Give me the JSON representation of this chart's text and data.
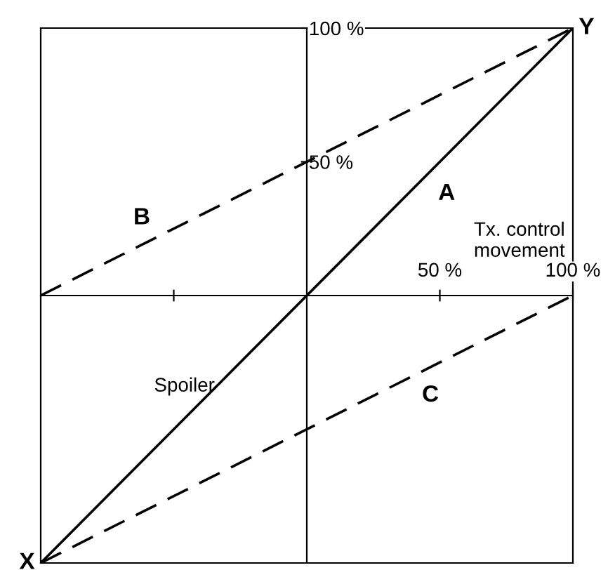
{
  "chart_data": {
    "type": "line",
    "xlabel": "Tx. control\nmovement",
    "ylabel": "Spoiler",
    "x": [
      -100,
      100
    ],
    "series": [
      {
        "name": "A",
        "color": "#000000",
        "values": [
          -100,
          100
        ],
        "line_style": "solid"
      },
      {
        "name": "B",
        "color": "#000000",
        "values": [
          0,
          100
        ],
        "line_style": "dashed"
      },
      {
        "name": "C",
        "color": "#000000",
        "values": [
          -100,
          0
        ],
        "line_style": "dashed"
      }
    ],
    "annotations": [
      {
        "text": "X",
        "x": -100,
        "y": -100
      },
      {
        "text": "Y",
        "x": 100,
        "y": 100
      }
    ],
    "xlim": [
      -100,
      100
    ],
    "ylim": [
      -100,
      100
    ],
    "xticks": [
      {
        "value": -50,
        "label": null
      },
      {
        "value": 50,
        "label": "50 %"
      },
      {
        "value": 100,
        "label": "100 %"
      }
    ],
    "yticks": [
      {
        "value": 50,
        "label": "50 %"
      },
      {
        "value": 100,
        "label": "100 %"
      }
    ],
    "grid": false,
    "legend": false,
    "marker": "none"
  }
}
